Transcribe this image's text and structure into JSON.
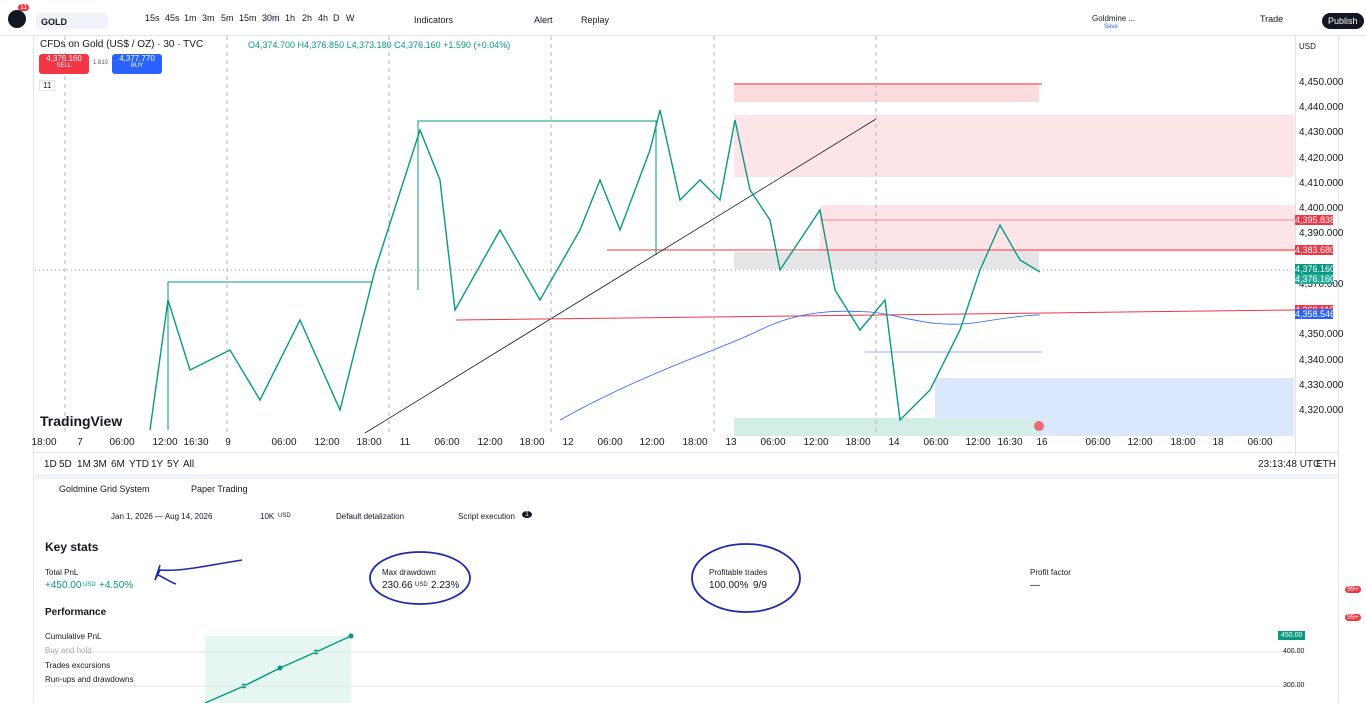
{
  "toolbar": {
    "symbol": "GOLD",
    "badge": "11",
    "intervals": [
      "15s",
      "45s",
      "1m",
      "3m",
      "5m",
      "15m",
      "30m",
      "1h",
      "2h",
      "4h",
      "D",
      "W"
    ],
    "indicators": "Indicators",
    "alert": "Alert",
    "replay": "Replay",
    "layout": "Goldmine ...",
    "layout_status": "Save",
    "trade": "Trade",
    "publish": "Publish"
  },
  "chart_header": {
    "title": "CFDs on Gold (US$ / OZ) · 30 · TVC",
    "ohlc": "O4,374.700 H4,376.850 L4,373.180 C4,376.160 +1.590 (+0.04%)",
    "sell_price": "4,376.160",
    "sell": "SELL",
    "spread": "1.610",
    "buy_price": "4,377.770",
    "buy": "BUY",
    "indicator_count": "11"
  },
  "price_axis": {
    "currency": "USD",
    "labels": [
      "4,450.000",
      "4,440.000",
      "4,430.000",
      "4,420.000",
      "4,410.000",
      "4,400.000",
      "4,390.000",
      "4,370.000",
      "4,350.000",
      "4,340.000",
      "4,330.000",
      "4,320.000"
    ],
    "markers": [
      {
        "label": "4,395.838",
        "color": "#f23645"
      },
      {
        "label": "4,383.680",
        "color": "#f23645"
      },
      {
        "label": "4,376.160",
        "color": "#089981"
      },
      {
        "label": "4,376.160",
        "color": "#22ab94"
      },
      {
        "label": "4,360.110",
        "color": "#f23645"
      },
      {
        "label": "4,358.546",
        "color": "#2962ff"
      }
    ]
  },
  "time_axis": [
    "18:00",
    "7",
    "06:00",
    "12:00",
    "16:30",
    "9",
    "06:00",
    "12:00",
    "18:00",
    "11",
    "06:00",
    "12:00",
    "18:00",
    "12",
    "06:00",
    "12:00",
    "18:00",
    "13",
    "06:00",
    "12:00",
    "18:00",
    "14",
    "06:00",
    "12:00",
    "16:30",
    "16",
    "06:00",
    "12:00",
    "18:00",
    "18",
    "06:00"
  ],
  "watermark": "TradingView",
  "ranges": [
    "1D",
    "5D",
    "1M",
    "3M",
    "6M",
    "YTD",
    "1Y",
    "5Y",
    "All"
  ],
  "clock": "23:13:48 UTC",
  "session": "ETH",
  "panel": {
    "strategy": "Goldmine Grid System",
    "broker": "Paper Trading",
    "date_range": "Jan 1, 2026 — Aug 14, 2026",
    "capital": "10K",
    "capital_unit": "USD",
    "detalization": "Default detalization",
    "execution": "Script execution",
    "execution_badge": "1",
    "key_stats": "Key stats",
    "stats": [
      {
        "label": "Total PnL",
        "value": "+450.00",
        "unit": "USD",
        "extra": "+4.50%"
      },
      {
        "label": "Max drawdown",
        "value": "230.66",
        "unit": "USD",
        "extra": "2.23%"
      },
      {
        "label": "Profitable trades",
        "value": "100.00%",
        "unit": "",
        "extra": "9/9"
      },
      {
        "label": "Profit factor",
        "value": "—",
        "unit": "",
        "extra": ""
      }
    ],
    "performance": "Performance",
    "legend": [
      "Cumulative PnL",
      "Buy and hold",
      "Trades excursions",
      "Run-ups and drawdowns"
    ],
    "axis": [
      "450.00",
      "400.00",
      "300.00"
    ]
  },
  "sidebar_badges": [
    "99+",
    "99+"
  ]
}
